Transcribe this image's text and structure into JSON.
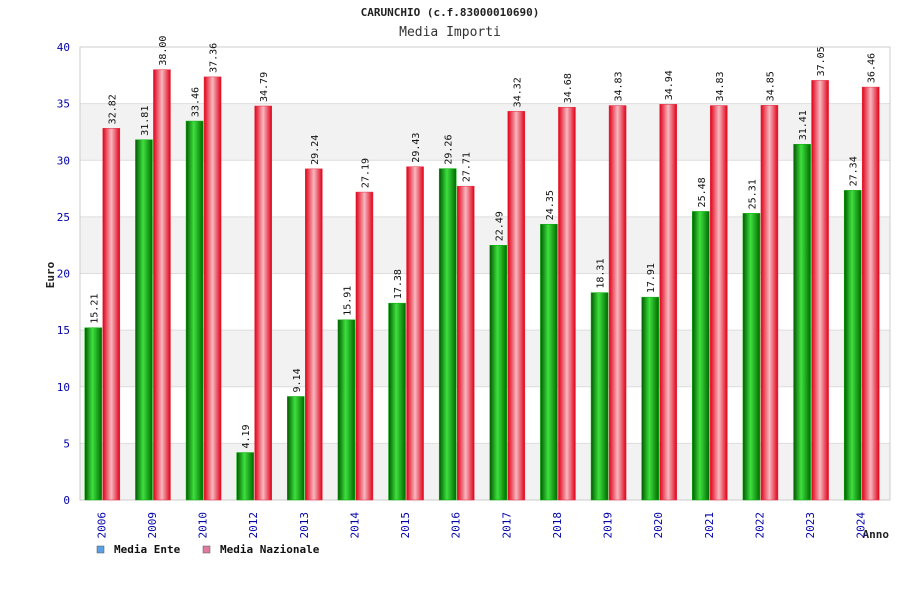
{
  "title": "CARUNCHIO (c.f.83000010690)",
  "subtitle": "Media Importi",
  "colors": {
    "series_ente": "#00b000",
    "series_nazionale": "#e8283c",
    "axis_text": "#0000aa",
    "legend_ente": "#5aa0e6",
    "legend_nazionale": "#e07aa0"
  },
  "chart_data": {
    "type": "bar",
    "title": "CARUNCHIO (c.f.83000010690)",
    "subtitle": "Media Importi",
    "xlabel": "Anno",
    "ylabel": "Euro",
    "ylim": [
      0,
      40
    ],
    "yticks": [
      0,
      5,
      10,
      15,
      20,
      25,
      30,
      35,
      40
    ],
    "grid": true,
    "legend_position": "bottom-left",
    "categories": [
      "2006",
      "2009",
      "2010",
      "2012",
      "2013",
      "2014",
      "2015",
      "2016",
      "2017",
      "2018",
      "2019",
      "2020",
      "2021",
      "2022",
      "2023",
      "2024"
    ],
    "series": [
      {
        "name": "Media Ente",
        "values": [
          15.21,
          31.81,
          33.46,
          4.19,
          9.14,
          15.91,
          17.38,
          29.26,
          22.49,
          24.35,
          18.31,
          17.91,
          25.48,
          25.31,
          31.41,
          27.34
        ]
      },
      {
        "name": "Media Nazionale",
        "values": [
          32.82,
          38.0,
          37.36,
          34.79,
          29.24,
          27.19,
          29.43,
          27.71,
          34.32,
          34.68,
          34.83,
          34.94,
          34.83,
          34.85,
          37.05,
          36.46
        ]
      }
    ],
    "data_labels": [
      [
        "15.21",
        "31.81",
        "33.46",
        "4.19",
        "9.14",
        "15.91",
        "17.38",
        "29.26",
        "22.49",
        "24.35",
        "18.31",
        "17.91",
        "25.48",
        "25.31",
        "31.41",
        "27.34"
      ],
      [
        "32.82",
        "38.00",
        "37.36",
        "34.79",
        "29.24",
        "27.19",
        "29.43",
        "27.71",
        "34.32",
        "34.68",
        "34.83",
        "34.94",
        "34.83",
        "34.85",
        "37.05",
        "36.46"
      ]
    ]
  }
}
